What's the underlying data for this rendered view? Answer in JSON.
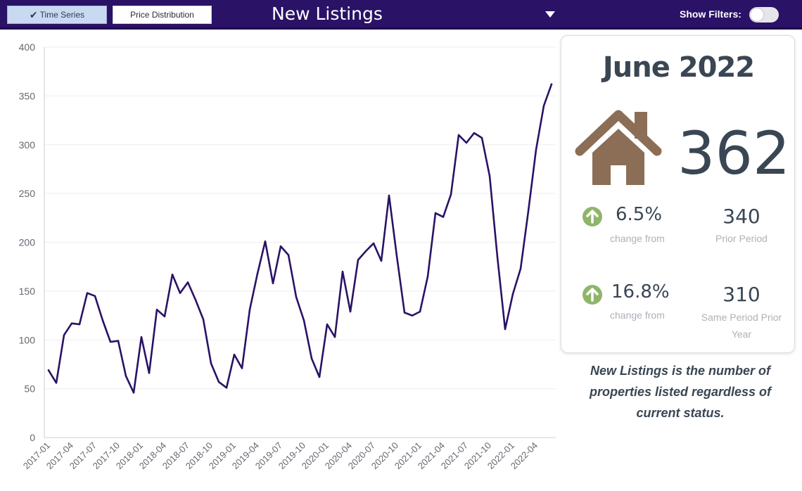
{
  "toolbar": {
    "time_series_tab": "Time Series",
    "price_distribution_tab": "Price Distribution",
    "title": "New Listings",
    "show_filters_label": "Show Filters:",
    "show_filters_on": false
  },
  "summary": {
    "period": "June 2022",
    "icon": "house-icon",
    "value": "362",
    "prior_change": {
      "percent": "6.5%",
      "label": "change from",
      "direction": "up",
      "value": "340",
      "value_label": "Prior Period"
    },
    "year_change": {
      "percent": "16.8%",
      "label": "change from",
      "direction": "up",
      "value": "310",
      "value_label_line1": "Same Period Prior",
      "value_label_line2": "Year"
    }
  },
  "description": "New Listings is the number of properties listed regardless of current status.",
  "colors": {
    "header_bg": "#2a1266",
    "line": "#2a1266",
    "house": "#8b6e55",
    "arrow_up": "#8fb56a",
    "text_dark": "#3a4654"
  },
  "chart_data": {
    "type": "line",
    "ylim": [
      0,
      400
    ],
    "yticks": [
      0,
      50,
      100,
      150,
      200,
      250,
      300,
      350,
      400
    ],
    "grid": true,
    "x_tick_labels": [
      "2017-01",
      "2017-04",
      "2017-07",
      "2017-10",
      "2018-01",
      "2018-04",
      "2018-07",
      "2018-10",
      "2019-01",
      "2019-04",
      "2019-07",
      "2019-10",
      "2020-01",
      "2020-04",
      "2020-07",
      "2020-10",
      "2021-01",
      "2021-04",
      "2021-07",
      "2021-10",
      "2022-01",
      "2022-04"
    ],
    "x": [
      "2017-01",
      "2017-02",
      "2017-03",
      "2017-04",
      "2017-05",
      "2017-06",
      "2017-07",
      "2017-08",
      "2017-09",
      "2017-10",
      "2017-11",
      "2017-12",
      "2018-01",
      "2018-02",
      "2018-03",
      "2018-04",
      "2018-05",
      "2018-06",
      "2018-07",
      "2018-08",
      "2018-09",
      "2018-10",
      "2018-11",
      "2018-12",
      "2019-01",
      "2019-02",
      "2019-03",
      "2019-04",
      "2019-05",
      "2019-06",
      "2019-07",
      "2019-08",
      "2019-09",
      "2019-10",
      "2019-11",
      "2019-12",
      "2020-01",
      "2020-02",
      "2020-03",
      "2020-04",
      "2020-05",
      "2020-06",
      "2020-07",
      "2020-08",
      "2020-09",
      "2020-10",
      "2020-11",
      "2020-12",
      "2021-01",
      "2021-02",
      "2021-03",
      "2021-04",
      "2021-05",
      "2021-06",
      "2021-07",
      "2021-08",
      "2021-09",
      "2021-10",
      "2021-11",
      "2021-12",
      "2022-01",
      "2022-02",
      "2022-03",
      "2022-04",
      "2022-05",
      "2022-06"
    ],
    "series": [
      {
        "values": [
          69,
          56,
          105,
          117,
          116,
          148,
          145,
          120,
          98,
          99,
          63,
          46,
          103,
          66,
          131,
          124,
          167,
          148,
          159,
          141,
          121,
          76,
          57,
          51,
          85,
          71,
          131,
          168,
          201,
          158,
          196,
          187,
          144,
          120,
          81,
          62,
          116,
          103,
          170,
          129,
          182,
          191,
          199,
          181,
          248,
          186,
          128,
          125,
          129,
          165,
          230,
          226,
          249,
          310,
          302,
          312,
          307,
          268,
          185,
          111,
          147,
          173,
          232,
          295,
          340,
          362
        ]
      }
    ]
  }
}
